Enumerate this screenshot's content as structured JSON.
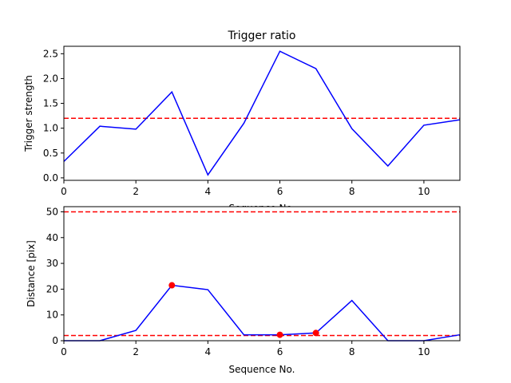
{
  "chart_data": [
    {
      "type": "line",
      "title": "Trigger ratio",
      "xlabel": "Sequence No.",
      "ylabel": "Trigger strength",
      "xlim": [
        0,
        11
      ],
      "ylim": [
        -0.05,
        2.65
      ],
      "xticks": [
        0,
        2,
        4,
        6,
        8,
        10
      ],
      "yticks": [
        0.0,
        0.5,
        1.0,
        1.5,
        2.0,
        2.5
      ],
      "ytick_labels": [
        "0.0",
        "0.5",
        "1.0",
        "1.5",
        "2.0",
        "2.5"
      ],
      "series": [
        {
          "color": "#0000ff",
          "x": [
            0,
            1,
            2,
            3,
            4,
            5,
            6,
            7,
            8,
            9,
            10,
            11
          ],
          "values": [
            0.33,
            1.04,
            0.98,
            1.73,
            0.06,
            1.1,
            2.55,
            2.2,
            0.99,
            0.24,
            1.06,
            1.17
          ]
        }
      ],
      "hlines": [
        {
          "y": 1.2,
          "color": "#ff0000",
          "style": "dashed"
        }
      ],
      "markers": []
    },
    {
      "type": "line",
      "title": "",
      "xlabel": "Sequence No.",
      "ylabel": "Distance [pix]",
      "xlim": [
        0,
        11
      ],
      "ylim": [
        0,
        52
      ],
      "xticks": [
        0,
        2,
        4,
        6,
        8,
        10
      ],
      "yticks": [
        0,
        10,
        20,
        30,
        40,
        50
      ],
      "ytick_labels": [
        "0",
        "10",
        "20",
        "30",
        "40",
        "50"
      ],
      "series": [
        {
          "color": "#0000ff",
          "x": [
            0,
            1,
            2,
            3,
            4,
            5,
            6,
            7,
            8,
            9,
            10,
            11
          ],
          "values": [
            0,
            0,
            4.0,
            21.5,
            19.8,
            2.3,
            2.3,
            3.0,
            15.6,
            0,
            0,
            2.3
          ]
        }
      ],
      "hlines": [
        {
          "y": 50,
          "color": "#ff0000",
          "style": "dashed"
        },
        {
          "y": 2,
          "color": "#ff0000",
          "style": "dashed"
        }
      ],
      "markers": [
        {
          "x": 3,
          "y": 21.5,
          "color": "#ff0000"
        },
        {
          "x": 6,
          "y": 2.3,
          "color": "#ff0000"
        },
        {
          "x": 7,
          "y": 3.0,
          "color": "#ff0000"
        }
      ]
    }
  ]
}
